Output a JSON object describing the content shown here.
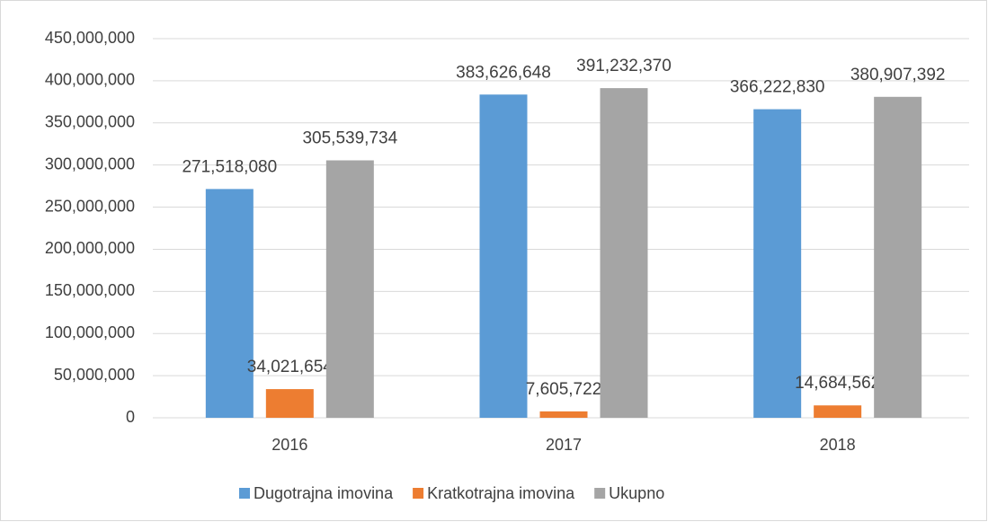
{
  "chart_data": {
    "type": "bar",
    "categories": [
      "2016",
      "2017",
      "2018"
    ],
    "series": [
      {
        "name": "Dugotrajna imovina",
        "color": "#5b9bd5",
        "values": [
          271518080,
          383626648,
          366222830
        ],
        "value_labels": [
          "271,518,080",
          "383,626,648",
          "366,222,830"
        ]
      },
      {
        "name": "Kratkotrajna imovina",
        "color": "#ed7d31",
        "values": [
          34021654,
          7605722,
          14684562
        ],
        "value_labels": [
          "34,021,654",
          "7,605,722",
          "14,684,562"
        ]
      },
      {
        "name": "Ukupno",
        "color": "#a5a5a5",
        "values": [
          305539734,
          391232370,
          380907392
        ],
        "value_labels": [
          "305,539,734",
          "391,232,370",
          "380,907,392"
        ]
      }
    ],
    "ylim": [
      0,
      450000000
    ],
    "yticks": [
      0,
      {
        "value": 50000000,
        "label": "50,000,000"
      },
      {
        "value": 100000000,
        "label": "100,000,000"
      },
      {
        "value": 150000000,
        "label": "150,000,000"
      },
      {
        "value": 200000000,
        "label": "200,000,000"
      },
      {
        "value": 250000000,
        "label": "250,000,000"
      },
      {
        "value": 300000000,
        "label": "300,000,000"
      },
      {
        "value": 350000000,
        "label": "350,000,000"
      },
      {
        "value": 400000000,
        "label": "400,000,000"
      },
      {
        "value": 450000000,
        "label": "450,000,000"
      }
    ],
    "grid": true,
    "legend": "bottom"
  }
}
